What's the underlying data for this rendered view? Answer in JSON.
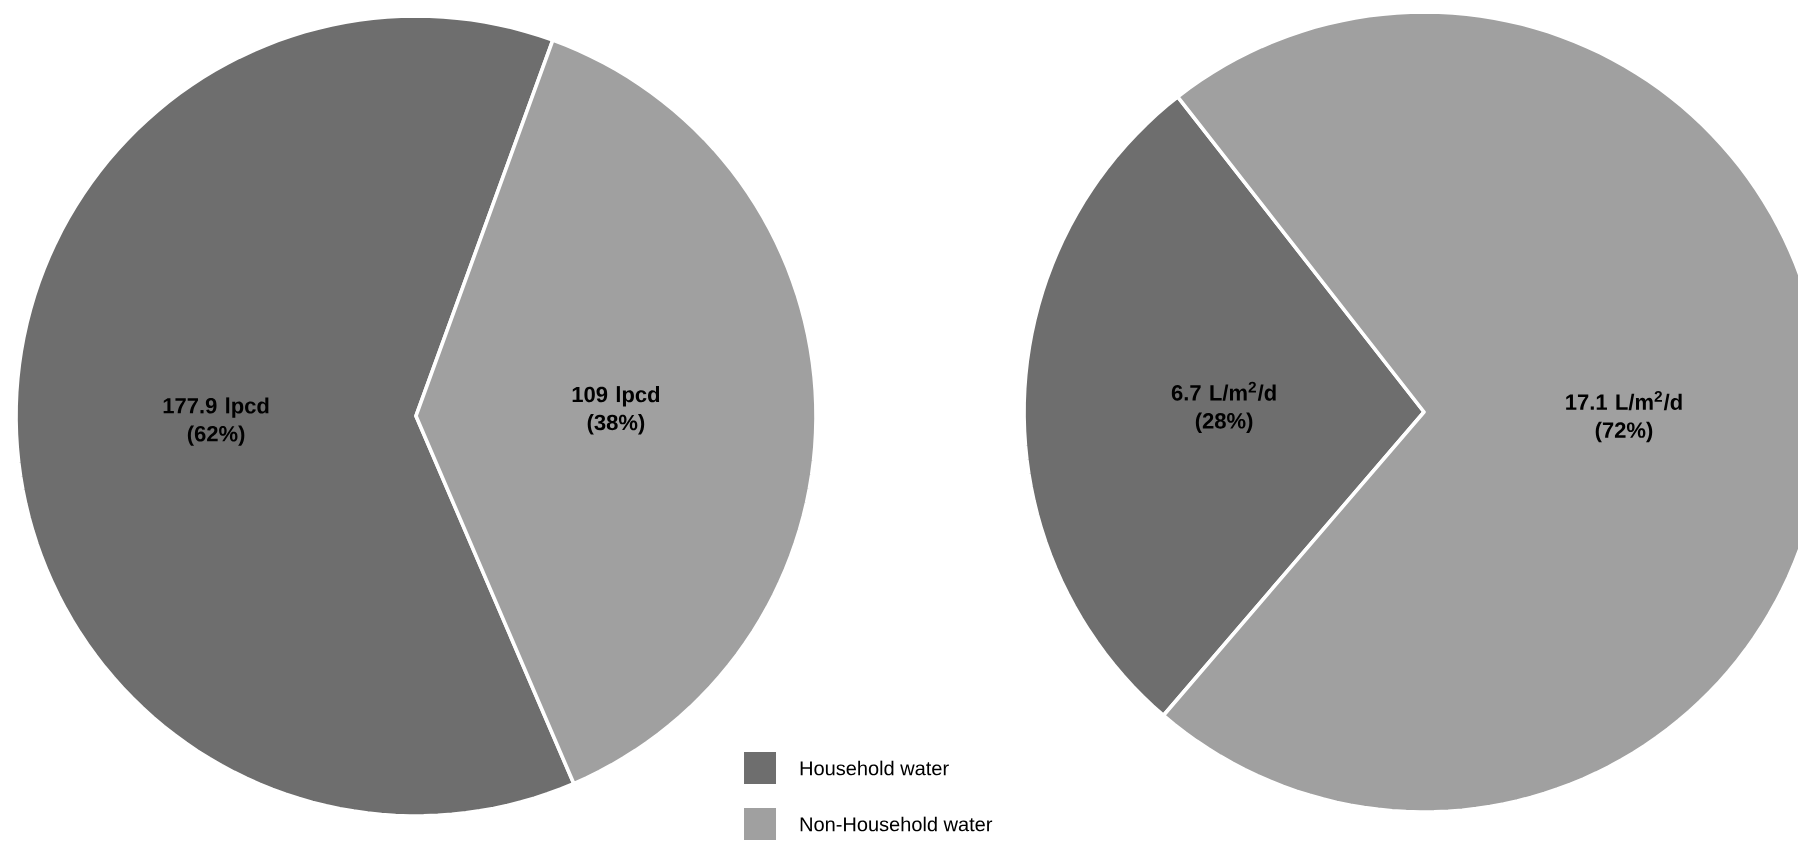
{
  "chart_data": [
    {
      "type": "pie",
      "categories": [
        "Household water",
        "Non-Household water"
      ],
      "values": [
        177.9,
        109
      ],
      "colors": [
        "#6e6e6e",
        "#a0a0a0"
      ],
      "value_labels": [
        "177.9 lpcd (62%)",
        "109 lpcd (38%)"
      ],
      "legend": "bottom right"
    },
    {
      "type": "pie",
      "categories": [
        null,
        null
      ],
      "values": [
        6.7,
        17.1
      ],
      "colors": [
        "#6e6e6e",
        "#a0a0a0"
      ],
      "value_labels": [
        "6.7 L/m$^{2}$/d (28%)",
        "17.1 L/m$^{2}$/d (72%)"
      ]
    }
  ]
}
